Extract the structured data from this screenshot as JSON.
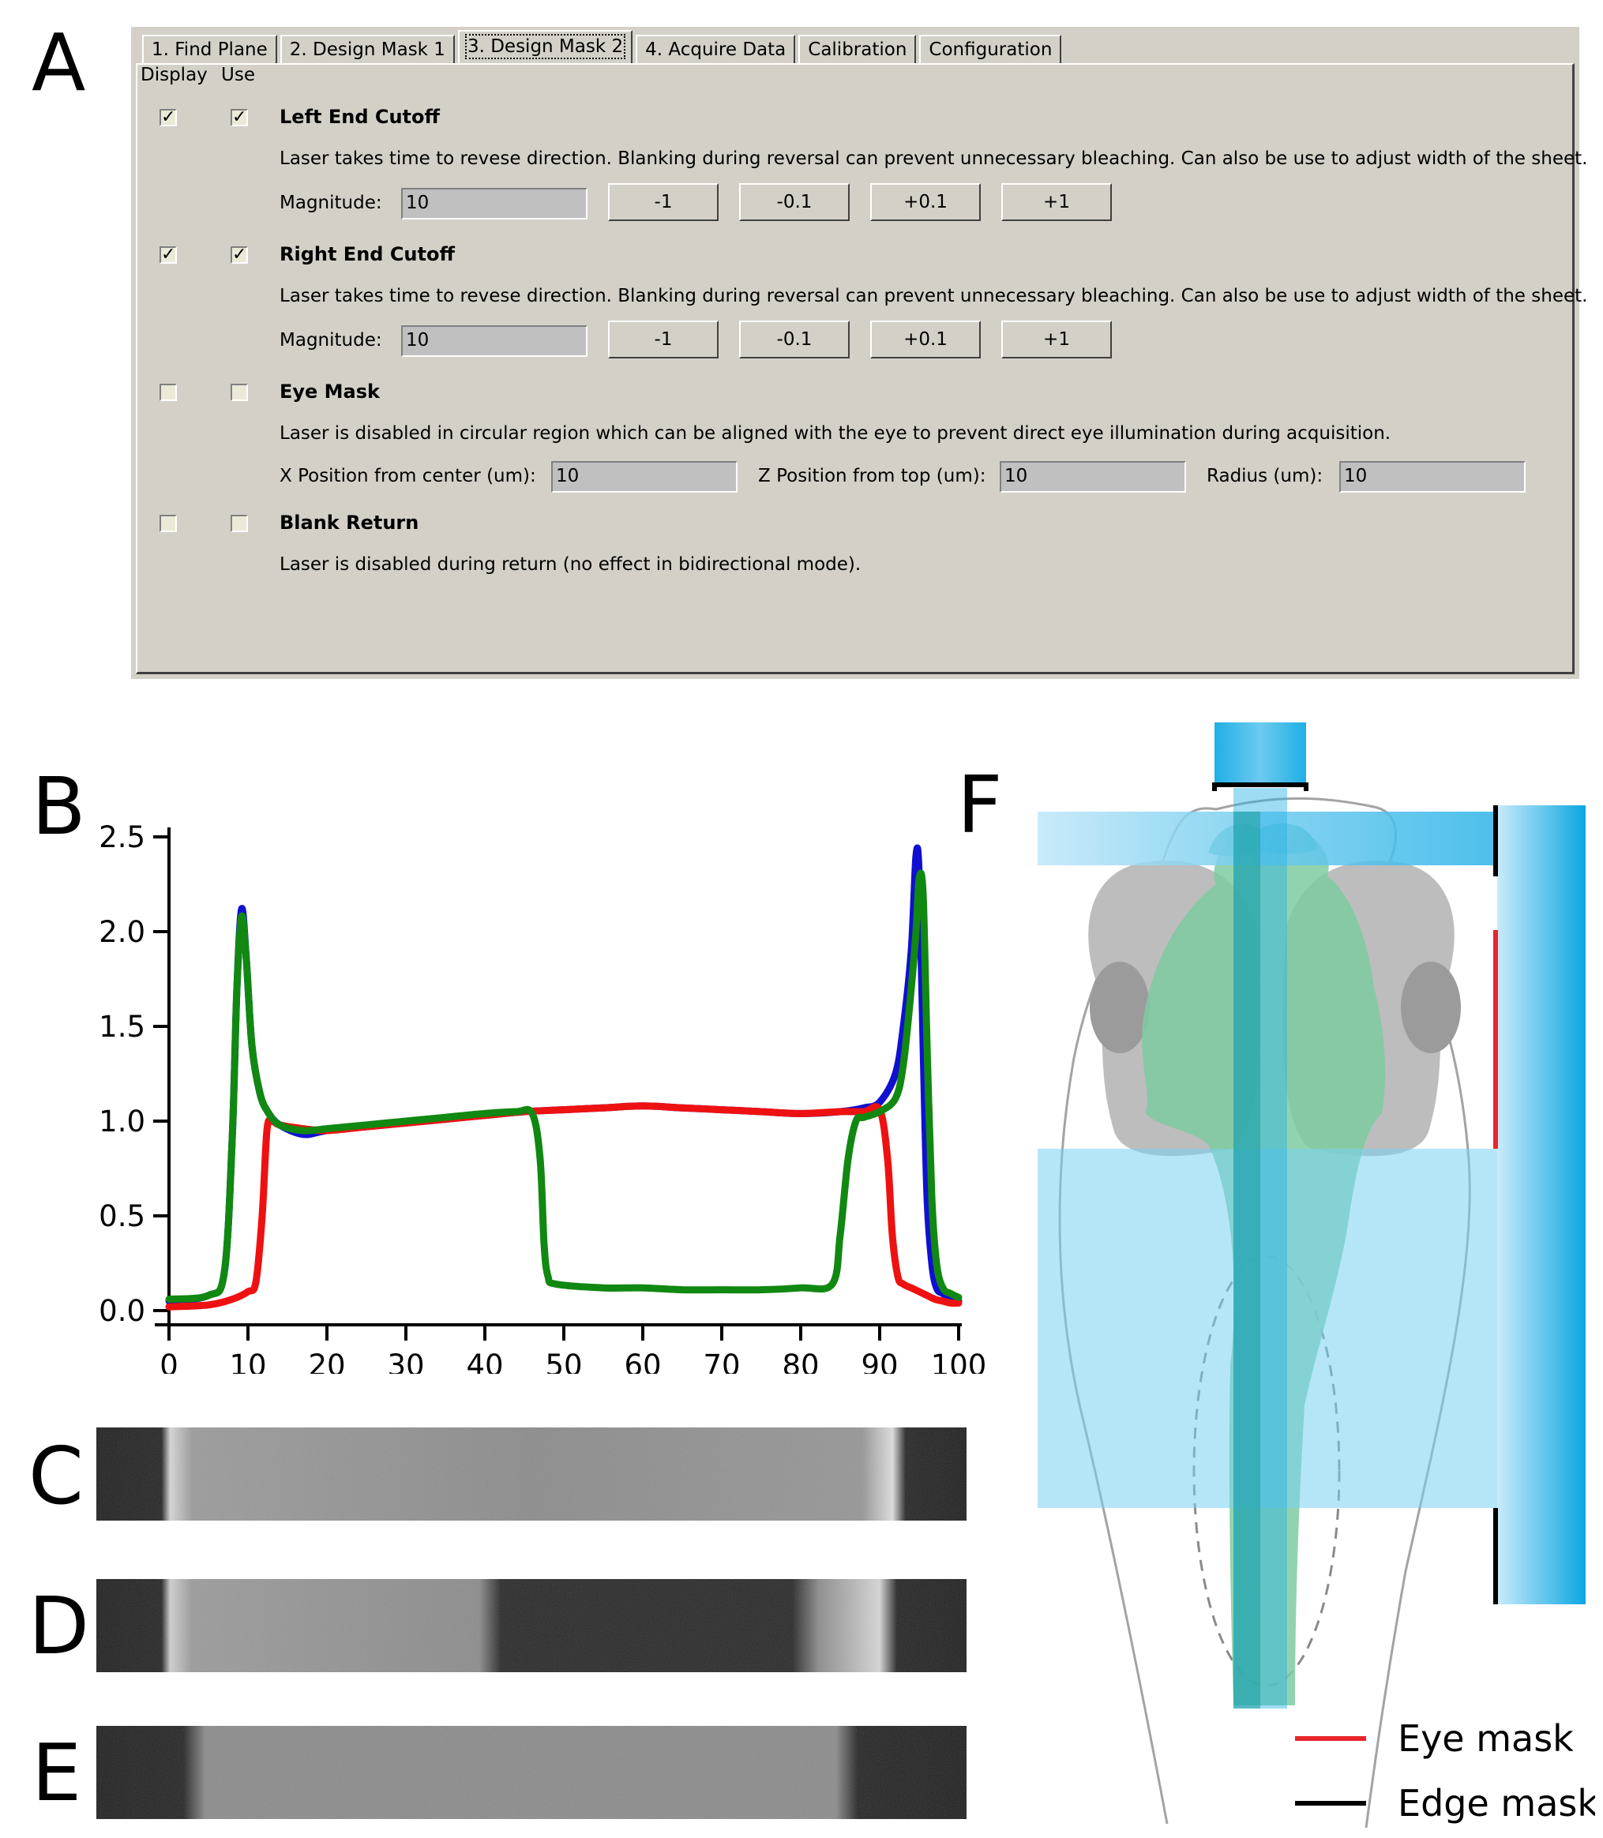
{
  "panels": {
    "a": "A",
    "b": "B",
    "c": "C",
    "d": "D",
    "e": "E",
    "f": "F"
  },
  "tabs": [
    {
      "label": "1. Find Plane",
      "active": false
    },
    {
      "label": "2. Design Mask 1",
      "active": false
    },
    {
      "label": "3. Design Mask 2",
      "active": true
    },
    {
      "label": "4. Acquire Data",
      "active": false
    },
    {
      "label": "Calibration",
      "active": false
    },
    {
      "label": "Configuration",
      "active": false
    }
  ],
  "column_headers": {
    "display": "Display",
    "use": "Use"
  },
  "sections": {
    "left_end_cutoff": {
      "title": "Left End Cutoff",
      "display_checked": true,
      "use_checked": true,
      "description": "Laser takes time to revese direction. Blanking during reversal can prevent unnecessary bleaching. Can also be use to adjust width of the sheet.",
      "magnitude_label": "Magnitude:",
      "magnitude_value": "10",
      "buttons": [
        "-1",
        "-0.1",
        "+0.1",
        "+1"
      ]
    },
    "right_end_cutoff": {
      "title": "Right End Cutoff",
      "display_checked": true,
      "use_checked": true,
      "description": "Laser takes time to revese direction. Blanking during reversal can prevent unnecessary bleaching. Can also be use to adjust width of the sheet.",
      "magnitude_label": "Magnitude:",
      "magnitude_value": "10",
      "buttons": [
        "-1",
        "-0.1",
        "+0.1",
        "+1"
      ]
    },
    "eye_mask": {
      "title": "Eye Mask",
      "display_checked": false,
      "use_checked": false,
      "description": "Laser is disabled in circular region which can be aligned with the eye to prevent direct eye illumination during acquisition.",
      "x_label": "X Position from center (um):",
      "x_value": "10",
      "z_label": "Z Position from top (um):",
      "z_value": "10",
      "r_label": "Radius (um):",
      "r_value": "10"
    },
    "blank_return": {
      "title": "Blank Return",
      "display_checked": false,
      "use_checked": false,
      "description": "Laser is disabled during return (no effect in bidirectional mode)."
    }
  },
  "chart_data": {
    "type": "line",
    "title": "",
    "xlabel": "",
    "ylabel": "",
    "xlim": [
      0,
      100
    ],
    "ylim": [
      0,
      2.5
    ],
    "xticks": [
      "0",
      "10",
      "20",
      "30",
      "40",
      "50",
      "60",
      "70",
      "80",
      "90",
      "100"
    ],
    "yticks": [
      "0.0",
      "0.5",
      "1.0",
      "1.5",
      "2.0",
      "2.5"
    ],
    "series": [
      {
        "color": "#1010d0",
        "x": [
          0,
          5,
          7,
          8,
          8.6,
          9.2,
          9.8,
          10.5,
          11.5,
          12.5,
          14,
          17,
          20,
          25,
          30,
          35,
          40,
          45,
          50,
          55,
          60,
          65,
          70,
          75,
          80,
          85,
          88,
          90,
          92,
          93,
          94,
          94.6,
          95,
          95.5,
          96,
          96.6,
          97.2,
          98,
          99,
          100
        ],
        "y": [
          0.05,
          0.08,
          0.2,
          0.9,
          1.7,
          2.12,
          1.85,
          1.4,
          1.15,
          1.05,
          0.98,
          0.93,
          0.95,
          0.97,
          0.99,
          1.01,
          1.03,
          1.05,
          1.06,
          1.07,
          1.08,
          1.07,
          1.06,
          1.05,
          1.04,
          1.05,
          1.07,
          1.1,
          1.25,
          1.5,
          1.9,
          2.4,
          2.3,
          1.4,
          0.6,
          0.25,
          0.12,
          0.09,
          0.07,
          0.05
        ]
      },
      {
        "color": "#ee1111",
        "x": [
          0,
          5,
          8,
          10,
          11,
          11.8,
          12.4,
          13,
          14,
          17,
          20,
          25,
          30,
          35,
          40,
          45,
          50,
          55,
          60,
          65,
          70,
          75,
          80,
          85,
          88,
          90,
          91,
          91.6,
          92.3,
          93,
          94,
          95,
          96,
          97,
          98,
          99,
          100
        ],
        "y": [
          0.02,
          0.03,
          0.06,
          0.1,
          0.15,
          0.5,
          0.95,
          1.0,
          0.98,
          0.96,
          0.95,
          0.97,
          0.99,
          1.01,
          1.03,
          1.05,
          1.06,
          1.07,
          1.08,
          1.07,
          1.06,
          1.05,
          1.04,
          1.05,
          1.05,
          1.06,
          0.8,
          0.4,
          0.18,
          0.14,
          0.12,
          0.1,
          0.08,
          0.06,
          0.05,
          0.04,
          0.04
        ]
      },
      {
        "color": "#118811",
        "x": [
          0,
          5,
          7,
          8,
          8.6,
          9.2,
          9.8,
          10.5,
          11.5,
          12.5,
          14,
          17,
          20,
          25,
          30,
          35,
          40,
          44,
          46,
          47,
          47.5,
          48,
          49,
          55,
          60,
          65,
          70,
          75,
          80,
          84,
          85,
          86,
          87,
          88,
          90,
          92,
          93,
          94,
          94.6,
          95,
          95.5,
          96,
          96.6,
          97.2,
          98,
          99,
          100
        ],
        "y": [
          0.06,
          0.08,
          0.2,
          0.9,
          1.7,
          2.08,
          1.85,
          1.4,
          1.15,
          1.05,
          0.98,
          0.95,
          0.96,
          0.98,
          1.0,
          1.02,
          1.04,
          1.05,
          1.04,
          0.8,
          0.35,
          0.18,
          0.14,
          0.12,
          0.12,
          0.11,
          0.11,
          0.11,
          0.12,
          0.14,
          0.4,
          0.8,
          1.0,
          1.02,
          1.05,
          1.12,
          1.3,
          1.7,
          2.0,
          2.28,
          2.2,
          1.4,
          0.6,
          0.25,
          0.12,
          0.09,
          0.07
        ]
      }
    ]
  },
  "legend_f": {
    "eye_mask": "Eye mask",
    "edge_mask": "Edge mask",
    "eye_mask_color": "#e8262b",
    "edge_mask_color": "#000000",
    "laser_color": "#29aae1"
  }
}
